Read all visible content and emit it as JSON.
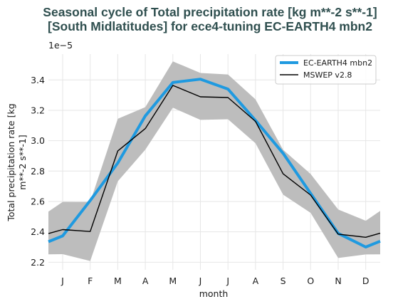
{
  "chart_data": {
    "type": "line",
    "title_line1": "Seasonal cycle of Total precipitation rate [kg m**-2 s**-1]",
    "title_line2": "[South Midlatitudes] for ece4-tuning EC-EARTH4 mbn2",
    "xlabel": "month",
    "ylabel_line1": "Total precipitation rate [kg",
    "ylabel_line2": "m**-2 s**-1]",
    "y_multiplier": "1e−5",
    "categories": [
      "J",
      "F",
      "M",
      "A",
      "M",
      "J",
      "J",
      "A",
      "S",
      "O",
      "N",
      "D"
    ],
    "y_ticks": [
      "2.2",
      "2.4",
      "2.6",
      "2.8",
      "3.0",
      "3.2",
      "3.4"
    ],
    "ylim": [
      2.15,
      3.57
    ],
    "grid": true,
    "legend_position": "top-right",
    "series": [
      {
        "name": "EC-EARTH4 mbn2",
        "color": "#1f9ae0",
        "values": [
          2.373,
          2.606,
          2.853,
          3.163,
          3.383,
          3.405,
          3.34,
          3.133,
          2.917,
          2.653,
          2.39,
          2.3
        ]
      },
      {
        "name": "MSWEP v2.8",
        "color": "#000000",
        "values": [
          2.415,
          2.402,
          2.932,
          3.08,
          3.364,
          3.289,
          3.284,
          3.127,
          2.782,
          2.642,
          2.385,
          2.364
        ]
      }
    ],
    "band": {
      "color": "#bdbdbd",
      "upper": [
        2.597,
        2.596,
        3.144,
        3.221,
        3.522,
        3.446,
        3.436,
        3.272,
        2.94,
        2.781,
        2.547,
        2.473
      ],
      "lower": [
        2.253,
        2.208,
        2.732,
        2.941,
        3.217,
        3.137,
        3.141,
        2.983,
        2.645,
        2.525,
        2.228,
        2.251
      ]
    }
  }
}
